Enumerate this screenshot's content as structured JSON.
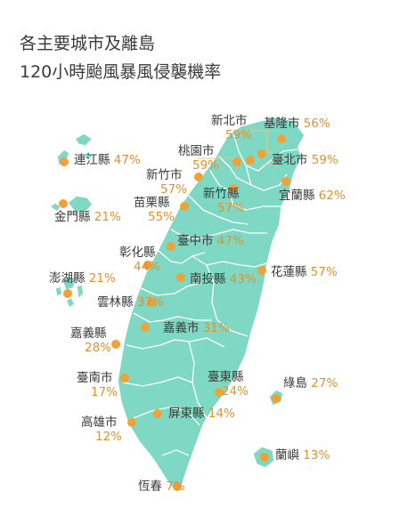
{
  "title_line1": "各主要城市及離島",
  "title_line2": "120小時颱風暴風侵襲機率",
  "colors": {
    "land": "#7fd8c3",
    "dot": "#f0a236",
    "percent": "#e3902c",
    "text": "#3a3a3a"
  },
  "regions": [
    {
      "id": "keelung",
      "name": "基隆市",
      "value": "56%"
    },
    {
      "id": "new-taipei",
      "name": "新北市",
      "value": "59%"
    },
    {
      "id": "taipei",
      "name": "臺北市",
      "value": "59%"
    },
    {
      "id": "taoyuan",
      "name": "桃園市",
      "value": "59%"
    },
    {
      "id": "yilan",
      "name": "宜蘭縣",
      "value": "62%"
    },
    {
      "id": "hsinchu-city",
      "name": "新竹市",
      "value": "57%"
    },
    {
      "id": "hsinchu-county",
      "name": "新竹縣",
      "value": "57%"
    },
    {
      "id": "miaoli",
      "name": "苗栗縣",
      "value": "55%"
    },
    {
      "id": "taichung",
      "name": "臺中市",
      "value": "47%"
    },
    {
      "id": "changhua",
      "name": "彰化縣",
      "value": "44%"
    },
    {
      "id": "nantou",
      "name": "南投縣",
      "value": "43%"
    },
    {
      "id": "hualien",
      "name": "花蓮縣",
      "value": "57%"
    },
    {
      "id": "yunlin",
      "name": "雲林縣",
      "value": "37%"
    },
    {
      "id": "chiayi-county",
      "name": "嘉義縣",
      "value": "28%"
    },
    {
      "id": "chiayi-city",
      "name": "嘉義市",
      "value": "31%"
    },
    {
      "id": "tainan",
      "name": "臺南市",
      "value": "17%"
    },
    {
      "id": "taitung",
      "name": "臺東縣",
      "value": "24%"
    },
    {
      "id": "green-island",
      "name": "綠島",
      "value": "27%"
    },
    {
      "id": "kaohsiung",
      "name": "高雄市",
      "value": "12%"
    },
    {
      "id": "pingtung",
      "name": "屏東縣",
      "value": "14%"
    },
    {
      "id": "hengchun",
      "name": "恆春",
      "value": "7%"
    },
    {
      "id": "lanyu",
      "name": "蘭嶼",
      "value": "13%"
    },
    {
      "id": "lienchiang",
      "name": "連江縣",
      "value": "47%"
    },
    {
      "id": "kinmen",
      "name": "金門縣",
      "value": "21%"
    },
    {
      "id": "penghu",
      "name": "澎湖縣",
      "value": "21%"
    }
  ]
}
